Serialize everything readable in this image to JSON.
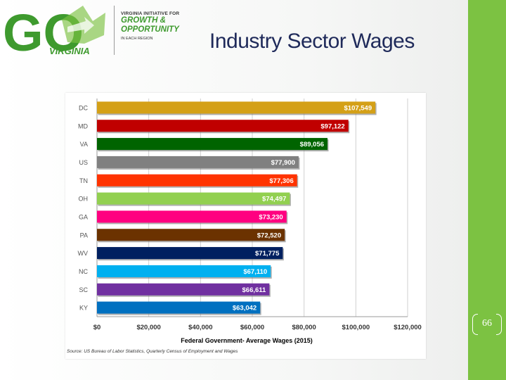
{
  "header": {
    "title": "Industry Sector Wages",
    "logo": {
      "mark": "GO",
      "mark_sub": "VIRGINIA",
      "line1": "VIRGINIA INITIATIVE FOR",
      "line2": "GROWTH &",
      "line3": "OPPORTUNITY",
      "line4": "IN EACH REGION"
    }
  },
  "page_number": "66",
  "colors": {
    "sidebar": "#7cc242",
    "title": "#1f2a5a",
    "logo_green": "#3e9a2e",
    "logo_light_green": "#7cc242"
  },
  "chart_data": {
    "type": "bar",
    "orientation": "horizontal",
    "xlabel": "Federal Government- Average Wages (2015)",
    "source": "Source: US Bureau of Labor Statistics, Quarterly Census of Employment and Wages",
    "xlim": [
      0,
      120000
    ],
    "xticks": [
      0,
      20000,
      40000,
      60000,
      80000,
      100000,
      120000
    ],
    "xtick_labels": [
      "$0",
      "$20,000",
      "$40,000",
      "$60,000",
      "$80,000",
      "$100,000",
      "$120,000"
    ],
    "grid": true,
    "categories": [
      "DC",
      "MD",
      "VA",
      "US",
      "TN",
      "OH",
      "GA",
      "PA",
      "WV",
      "NC",
      "SC",
      "KY"
    ],
    "values": [
      107549,
      97122,
      89056,
      77900,
      77306,
      74497,
      73230,
      72520,
      71775,
      67110,
      66611,
      63042
    ],
    "value_labels": [
      "$107,549",
      "$97,122",
      "$89,056",
      "$77,900",
      "$77,306",
      "$74,497",
      "$73,230",
      "$72,520",
      "$71,775",
      "$67,110",
      "$66,611",
      "$63,042"
    ],
    "bar_colors": [
      "#d4a017",
      "#c00000",
      "#006400",
      "#808080",
      "#ff3300",
      "#92d050",
      "#ff0080",
      "#6b3200",
      "#002060",
      "#00b0f0",
      "#7030a0",
      "#0070c0"
    ]
  }
}
